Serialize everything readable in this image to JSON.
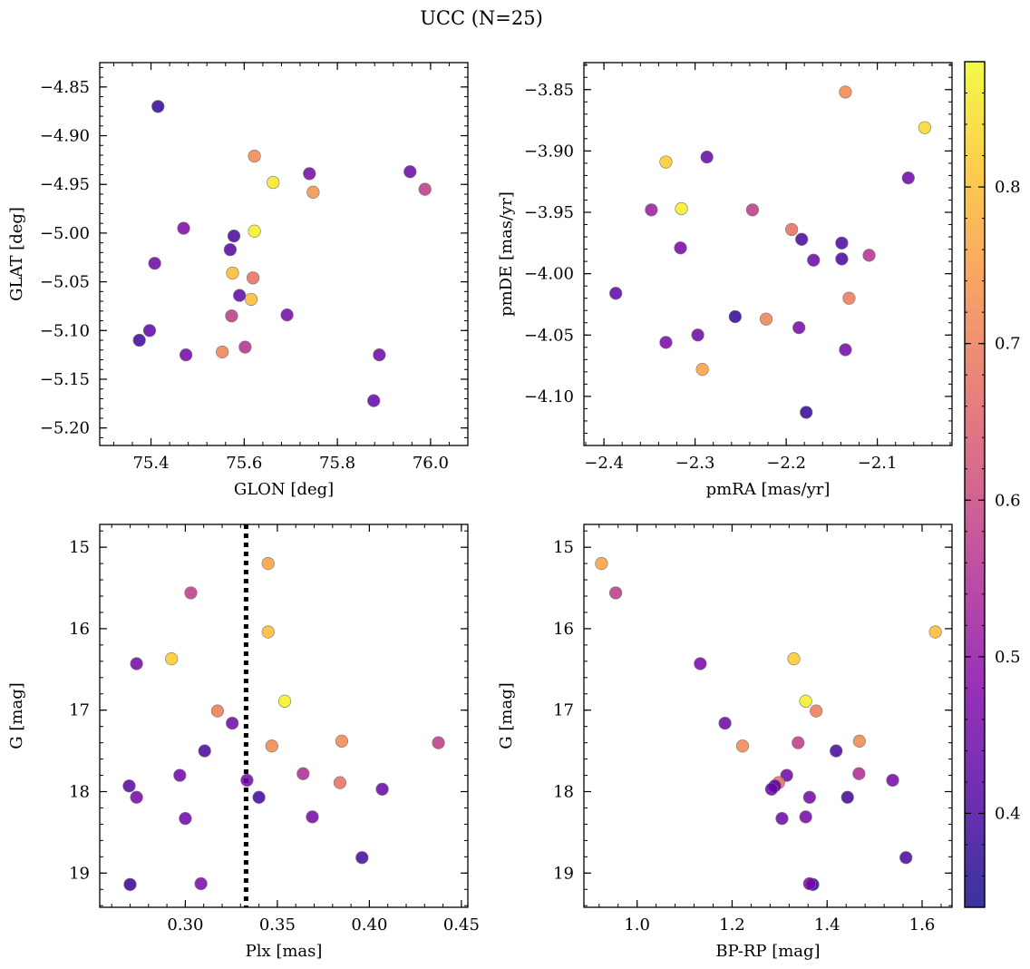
{
  "figure": {
    "title": "UCC (N=25)",
    "colorbar": {
      "range": [
        0.34,
        0.88
      ],
      "ticks": [
        0.4,
        0.5,
        0.6,
        0.7,
        0.8
      ],
      "tick_labels": [
        "0.4",
        "0.5",
        "0.6",
        "0.7",
        "0.8"
      ],
      "colormap": "plasma"
    }
  },
  "chart_data": [
    {
      "type": "scatter",
      "name": "position",
      "xlabel": "GLON [deg]",
      "ylabel": "GLAT [deg]",
      "xlim": [
        75.29,
        76.08
      ],
      "ylim": [
        -5.218,
        -4.825
      ],
      "xticks": [
        75.4,
        75.6,
        75.8,
        76.0
      ],
      "xtick_labels": [
        "75.4",
        "75.6",
        "75.8",
        "76.0"
      ],
      "yticks": [
        -4.85,
        -4.9,
        -4.95,
        -5.0,
        -5.05,
        -5.1,
        -5.15,
        -5.2
      ],
      "ytick_labels": [
        "−4.85",
        "−4.90",
        "−4.95",
        "−5.00",
        "−5.05",
        "−5.10",
        "−5.15",
        "−5.20"
      ],
      "points": [
        {
          "x": 75.415,
          "y": -4.87,
          "c": 0.38
        },
        {
          "x": 75.622,
          "y": -4.921,
          "c": 0.72
        },
        {
          "x": 75.662,
          "y": -4.948,
          "c": 0.86
        },
        {
          "x": 75.748,
          "y": -4.958,
          "c": 0.74
        },
        {
          "x": 75.74,
          "y": -4.939,
          "c": 0.46
        },
        {
          "x": 75.956,
          "y": -4.937,
          "c": 0.45
        },
        {
          "x": 75.988,
          "y": -4.955,
          "c": 0.58
        },
        {
          "x": 75.47,
          "y": -4.995,
          "c": 0.47
        },
        {
          "x": 75.578,
          "y": -5.003,
          "c": 0.4
        },
        {
          "x": 75.622,
          "y": -4.998,
          "c": 0.87
        },
        {
          "x": 75.57,
          "y": -5.017,
          "c": 0.42
        },
        {
          "x": 75.408,
          "y": -5.031,
          "c": 0.45
        },
        {
          "x": 75.575,
          "y": -5.041,
          "c": 0.8
        },
        {
          "x": 75.619,
          "y": -5.046,
          "c": 0.68
        },
        {
          "x": 75.59,
          "y": -5.064,
          "c": 0.43
        },
        {
          "x": 75.615,
          "y": -5.068,
          "c": 0.8
        },
        {
          "x": 75.692,
          "y": -5.084,
          "c": 0.46
        },
        {
          "x": 75.573,
          "y": -5.085,
          "c": 0.58
        },
        {
          "x": 75.397,
          "y": -5.1,
          "c": 0.43
        },
        {
          "x": 75.375,
          "y": -5.11,
          "c": 0.39
        },
        {
          "x": 75.602,
          "y": -5.117,
          "c": 0.56
        },
        {
          "x": 75.553,
          "y": -5.122,
          "c": 0.71
        },
        {
          "x": 75.475,
          "y": -5.125,
          "c": 0.46
        },
        {
          "x": 75.89,
          "y": -5.125,
          "c": 0.45
        },
        {
          "x": 75.878,
          "y": -5.172,
          "c": 0.44
        }
      ]
    },
    {
      "type": "scatter",
      "name": "proper-motion",
      "xlabel": "pmRA [mas/yr]",
      "ylabel": "pmDE [mas/yr]",
      "xlim": [
        -2.422,
        -2.018
      ],
      "ylim": [
        -4.14,
        -3.828
      ],
      "xticks": [
        -2.4,
        -2.3,
        -2.2,
        -2.1
      ],
      "xtick_labels": [
        "−2.4",
        "−2.3",
        "−2.2",
        "−2.1"
      ],
      "yticks": [
        -3.85,
        -3.9,
        -3.95,
        -4.0,
        -4.05,
        -4.1
      ],
      "ytick_labels": [
        "−3.85",
        "−3.90",
        "−3.95",
        "−4.00",
        "−4.05",
        "−4.10"
      ],
      "points": [
        {
          "x": -2.135,
          "y": -3.852,
          "c": 0.72
        },
        {
          "x": -2.048,
          "y": -3.881,
          "c": 0.84
        },
        {
          "x": -2.332,
          "y": -3.909,
          "c": 0.82
        },
        {
          "x": -2.287,
          "y": -3.905,
          "c": 0.44
        },
        {
          "x": -2.066,
          "y": -3.922,
          "c": 0.45
        },
        {
          "x": -2.348,
          "y": -3.948,
          "c": 0.52
        },
        {
          "x": -2.315,
          "y": -3.947,
          "c": 0.87
        },
        {
          "x": -2.237,
          "y": -3.948,
          "c": 0.58
        },
        {
          "x": -2.194,
          "y": -3.964,
          "c": 0.68
        },
        {
          "x": -2.183,
          "y": -3.972,
          "c": 0.4
        },
        {
          "x": -2.139,
          "y": -3.975,
          "c": 0.41
        },
        {
          "x": -2.316,
          "y": -3.979,
          "c": 0.46
        },
        {
          "x": -2.109,
          "y": -3.985,
          "c": 0.56
        },
        {
          "x": -2.17,
          "y": -3.989,
          "c": 0.45
        },
        {
          "x": -2.139,
          "y": -3.988,
          "c": 0.4
        },
        {
          "x": -2.387,
          "y": -4.016,
          "c": 0.43
        },
        {
          "x": -2.131,
          "y": -4.02,
          "c": 0.7
        },
        {
          "x": -2.256,
          "y": -4.035,
          "c": 0.38
        },
        {
          "x": -2.222,
          "y": -4.037,
          "c": 0.71
        },
        {
          "x": -2.186,
          "y": -4.044,
          "c": 0.46
        },
        {
          "x": -2.297,
          "y": -4.05,
          "c": 0.45
        },
        {
          "x": -2.332,
          "y": -4.056,
          "c": 0.47
        },
        {
          "x": -2.135,
          "y": -4.062,
          "c": 0.46
        },
        {
          "x": -2.292,
          "y": -4.078,
          "c": 0.76
        },
        {
          "x": -2.178,
          "y": -4.113,
          "c": 0.38
        }
      ]
    },
    {
      "type": "scatter",
      "name": "parallax-magnitude",
      "xlabel": "Plx [mas]",
      "ylabel": "G [mag]",
      "xlim": [
        0.2535,
        0.4535
      ],
      "ylim": [
        19.42,
        14.72
      ],
      "y_inverted": true,
      "xticks": [
        0.3,
        0.35,
        0.4,
        0.45
      ],
      "xtick_labels": [
        "0.30",
        "0.35",
        "0.40",
        "0.45"
      ],
      "yticks": [
        15,
        16,
        17,
        18,
        19
      ],
      "ytick_labels": [
        "15",
        "16",
        "17",
        "18",
        "19"
      ],
      "vline": {
        "x": 0.333,
        "style": "dotted",
        "color": "#000000"
      },
      "points": [
        {
          "x": 0.345,
          "y": 15.2,
          "c": 0.76
        },
        {
          "x": 0.303,
          "y": 15.56,
          "c": 0.58
        },
        {
          "x": 0.345,
          "y": 16.04,
          "c": 0.8
        },
        {
          "x": 0.2735,
          "y": 16.43,
          "c": 0.46
        },
        {
          "x": 0.2925,
          "y": 16.37,
          "c": 0.82
        },
        {
          "x": 0.354,
          "y": 16.89,
          "c": 0.87
        },
        {
          "x": 0.3175,
          "y": 17.01,
          "c": 0.7
        },
        {
          "x": 0.3255,
          "y": 17.16,
          "c": 0.45
        },
        {
          "x": 0.3105,
          "y": 17.5,
          "c": 0.4
        },
        {
          "x": 0.347,
          "y": 17.44,
          "c": 0.72
        },
        {
          "x": 0.385,
          "y": 17.38,
          "c": 0.72
        },
        {
          "x": 0.4375,
          "y": 17.4,
          "c": 0.58
        },
        {
          "x": 0.297,
          "y": 17.8,
          "c": 0.45
        },
        {
          "x": 0.364,
          "y": 17.78,
          "c": 0.55
        },
        {
          "x": 0.3335,
          "y": 17.86,
          "c": 0.46
        },
        {
          "x": 0.384,
          "y": 17.89,
          "c": 0.68
        },
        {
          "x": 0.2695,
          "y": 17.93,
          "c": 0.42
        },
        {
          "x": 0.407,
          "y": 17.97,
          "c": 0.44
        },
        {
          "x": 0.2735,
          "y": 18.07,
          "c": 0.46
        },
        {
          "x": 0.34,
          "y": 18.07,
          "c": 0.39
        },
        {
          "x": 0.3,
          "y": 18.33,
          "c": 0.45
        },
        {
          "x": 0.369,
          "y": 18.31,
          "c": 0.46
        },
        {
          "x": 0.396,
          "y": 18.81,
          "c": 0.4
        },
        {
          "x": 0.27,
          "y": 19.14,
          "c": 0.38
        },
        {
          "x": 0.3085,
          "y": 19.13,
          "c": 0.47
        }
      ]
    },
    {
      "type": "scatter",
      "name": "color-magnitude",
      "xlabel": "BP-RP [mag]",
      "ylabel": "G [mag]",
      "xlim": [
        0.888,
        1.663
      ],
      "ylim": [
        19.42,
        14.72
      ],
      "y_inverted": true,
      "xticks": [
        1.0,
        1.2,
        1.4,
        1.6
      ],
      "xtick_labels": [
        "1.0",
        "1.2",
        "1.4",
        "1.6"
      ],
      "yticks": [
        15,
        16,
        17,
        18,
        19
      ],
      "ytick_labels": [
        "15",
        "16",
        "17",
        "18",
        "19"
      ],
      "points": [
        {
          "x": 0.925,
          "y": 15.2,
          "c": 0.76
        },
        {
          "x": 0.955,
          "y": 15.56,
          "c": 0.58
        },
        {
          "x": 1.628,
          "y": 16.04,
          "c": 0.8
        },
        {
          "x": 1.133,
          "y": 16.43,
          "c": 0.46
        },
        {
          "x": 1.33,
          "y": 16.37,
          "c": 0.82
        },
        {
          "x": 1.355,
          "y": 16.89,
          "c": 0.87
        },
        {
          "x": 1.377,
          "y": 17.01,
          "c": 0.7
        },
        {
          "x": 1.185,
          "y": 17.16,
          "c": 0.45
        },
        {
          "x": 1.419,
          "y": 17.5,
          "c": 0.4
        },
        {
          "x": 1.222,
          "y": 17.44,
          "c": 0.72
        },
        {
          "x": 1.468,
          "y": 17.38,
          "c": 0.72
        },
        {
          "x": 1.339,
          "y": 17.4,
          "c": 0.58
        },
        {
          "x": 1.315,
          "y": 17.8,
          "c": 0.45
        },
        {
          "x": 1.467,
          "y": 17.78,
          "c": 0.55
        },
        {
          "x": 1.538,
          "y": 17.86,
          "c": 0.46
        },
        {
          "x": 1.298,
          "y": 17.89,
          "c": 0.68
        },
        {
          "x": 1.29,
          "y": 17.93,
          "c": 0.42
        },
        {
          "x": 1.283,
          "y": 17.97,
          "c": 0.44
        },
        {
          "x": 1.363,
          "y": 18.07,
          "c": 0.46
        },
        {
          "x": 1.443,
          "y": 18.07,
          "c": 0.39
        },
        {
          "x": 1.305,
          "y": 18.33,
          "c": 0.45
        },
        {
          "x": 1.355,
          "y": 18.31,
          "c": 0.46
        },
        {
          "x": 1.566,
          "y": 18.81,
          "c": 0.4
        },
        {
          "x": 1.37,
          "y": 19.14,
          "c": 0.38
        },
        {
          "x": 1.363,
          "y": 19.13,
          "c": 0.47
        }
      ]
    }
  ]
}
